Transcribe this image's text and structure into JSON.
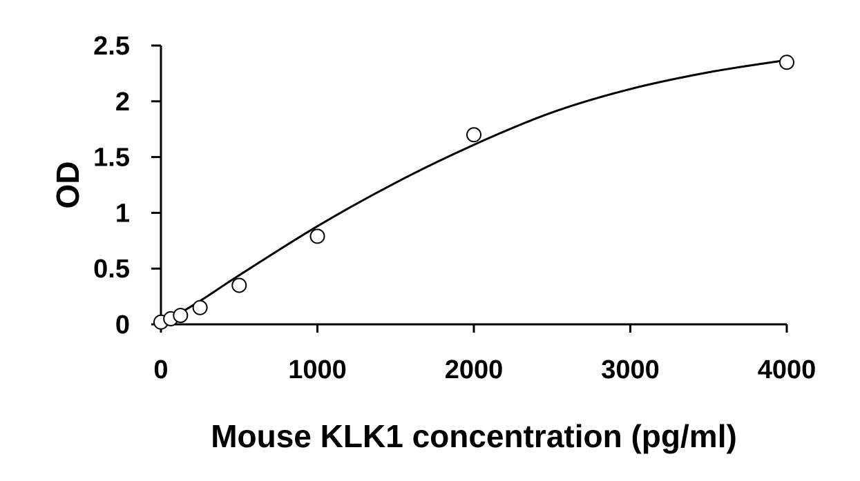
{
  "chart_data": {
    "type": "scatter",
    "title": "",
    "xlabel": "Mouse KLK1 concentration (pg/ml)",
    "ylabel": "OD",
    "xlim": [
      0,
      4000
    ],
    "ylim": [
      0,
      2.5
    ],
    "xticks": [
      0,
      1000,
      2000,
      3000,
      4000
    ],
    "xtick_labels": [
      "0",
      "1000",
      "2000",
      "3000",
      "4000"
    ],
    "yticks": [
      0,
      0.5,
      1,
      1.5,
      2,
      2.5
    ],
    "ytick_labels": [
      "0",
      "0.5",
      "1",
      "1.5",
      "2",
      "2.5"
    ],
    "grid": false,
    "legend": "none",
    "series": [
      {
        "marker": "open-circle",
        "x": [
          0,
          62.5,
          125,
          250,
          500,
          1000,
          2000,
          4000
        ],
        "y": [
          0.02,
          0.05,
          0.08,
          0.15,
          0.35,
          0.79,
          1.7,
          2.35
        ]
      }
    ],
    "fit_curve": {
      "style": "solid-line",
      "x": [
        0,
        250,
        500,
        1000,
        1500,
        2000,
        2500,
        3000,
        3500,
        4000
      ],
      "y": [
        0.0,
        0.21,
        0.44,
        0.88,
        1.27,
        1.61,
        1.9,
        2.11,
        2.26,
        2.37
      ]
    }
  }
}
